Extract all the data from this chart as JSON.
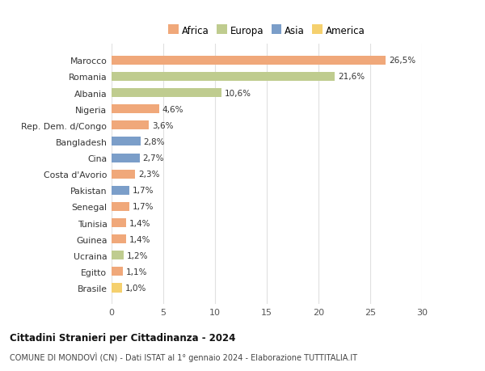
{
  "categories": [
    "Marocco",
    "Romania",
    "Albania",
    "Nigeria",
    "Rep. Dem. d/Congo",
    "Bangladesh",
    "Cina",
    "Costa d'Avorio",
    "Pakistan",
    "Senegal",
    "Tunisia",
    "Guinea",
    "Ucraina",
    "Egitto",
    "Brasile"
  ],
  "values": [
    26.5,
    21.6,
    10.6,
    4.6,
    3.6,
    2.8,
    2.7,
    2.3,
    1.7,
    1.7,
    1.4,
    1.4,
    1.2,
    1.1,
    1.0
  ],
  "labels": [
    "26,5%",
    "21,6%",
    "10,6%",
    "4,6%",
    "3,6%",
    "2,8%",
    "2,7%",
    "2,3%",
    "1,7%",
    "1,7%",
    "1,4%",
    "1,4%",
    "1,2%",
    "1,1%",
    "1,0%"
  ],
  "continents": [
    "Africa",
    "Europa",
    "Europa",
    "Africa",
    "Africa",
    "Asia",
    "Asia",
    "Africa",
    "Asia",
    "Africa",
    "Africa",
    "Africa",
    "Europa",
    "Africa",
    "America"
  ],
  "colors": {
    "Africa": "#F0A87A",
    "Europa": "#BFCC8F",
    "Asia": "#7B9EC9",
    "America": "#F5D06E"
  },
  "legend_order": [
    "Africa",
    "Europa",
    "Asia",
    "America"
  ],
  "title": "Cittadini Stranieri per Cittadinanza - 2024",
  "subtitle": "COMUNE DI MONDOVÌ (CN) - Dati ISTAT al 1° gennaio 2024 - Elaborazione TUTTITALIA.IT",
  "xlim": [
    0,
    30
  ],
  "xticks": [
    0,
    5,
    10,
    15,
    20,
    25,
    30
  ],
  "background_color": "#ffffff",
  "grid_color": "#e0e0e0"
}
